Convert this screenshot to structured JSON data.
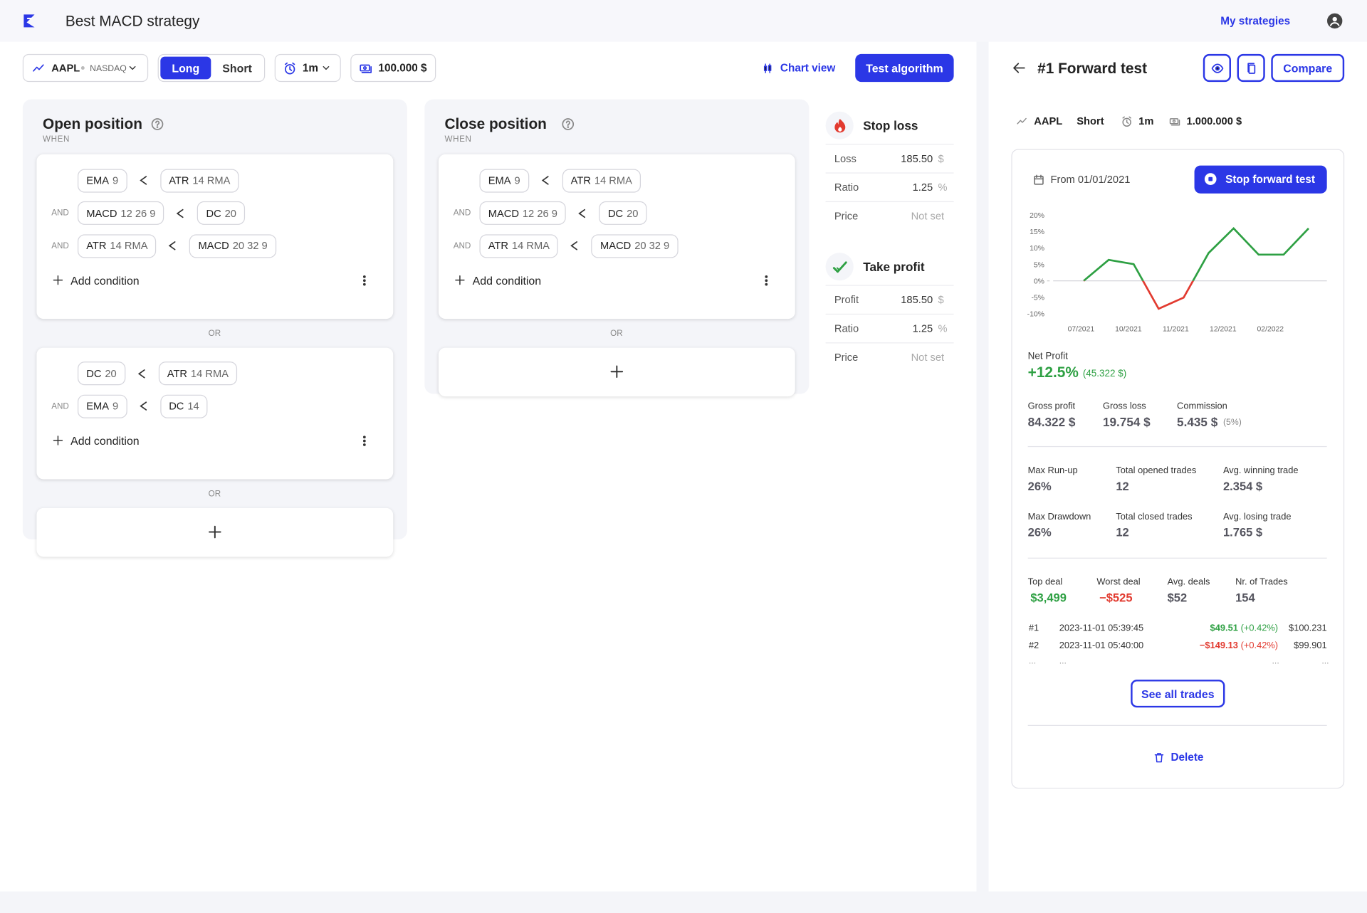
{
  "header": {
    "title": "Best MACD strategy",
    "nav_link": "My strategies"
  },
  "toolbar": {
    "symbol": "AAPL",
    "exchange": "NASDAQ",
    "long": "Long",
    "short": "Short",
    "interval": "1m",
    "capital": "100.000 $",
    "chart_view": "Chart view",
    "test_button": "Test algorithm"
  },
  "labels": {
    "and": "AND",
    "or": "OR",
    "add_condition": "Add condition"
  },
  "open_position": {
    "title": "Open position",
    "subtitle": "WHEN",
    "groups": [
      [
        [
          {
            "name": "EMA",
            "params": "9"
          },
          {
            "name": "ATR",
            "params": "14 RMA"
          }
        ],
        [
          {
            "name": "MACD",
            "params": "12 26 9"
          },
          {
            "name": "DC",
            "params": "20"
          }
        ],
        [
          {
            "name": "ATR",
            "params": "14 RMA"
          },
          {
            "name": "MACD",
            "params": "20 32 9"
          }
        ]
      ],
      [
        [
          {
            "name": "DC",
            "params": "20"
          },
          {
            "name": "ATR",
            "params": "14 RMA"
          }
        ],
        [
          {
            "name": "EMA",
            "params": "9"
          },
          {
            "name": "DC",
            "params": "14"
          }
        ]
      ]
    ]
  },
  "close_position": {
    "title": "Close position",
    "subtitle": "WHEN",
    "groups": [
      [
        [
          {
            "name": "EMA",
            "params": "9"
          },
          {
            "name": "ATR",
            "params": "14 RMA"
          }
        ],
        [
          {
            "name": "MACD",
            "params": "12 26 9"
          },
          {
            "name": "DC",
            "params": "20"
          }
        ],
        [
          {
            "name": "ATR",
            "params": "14 RMA"
          },
          {
            "name": "MACD",
            "params": "20 32 9"
          }
        ]
      ]
    ]
  },
  "stop_loss": {
    "title": "Stop loss",
    "rows": [
      {
        "label": "Loss",
        "value": "185.50",
        "unit": "$"
      },
      {
        "label": "Ratio",
        "value": "1.25",
        "unit": "%"
      },
      {
        "label": "Price",
        "value": "Not set"
      }
    ]
  },
  "take_profit": {
    "title": "Take profit",
    "rows": [
      {
        "label": "Profit",
        "value": "185.50",
        "unit": "$"
      },
      {
        "label": "Ratio",
        "value": "1.25",
        "unit": "%"
      },
      {
        "label": "Price",
        "value": "Not set"
      }
    ]
  },
  "forward_test": {
    "title": "#1 Forward test",
    "compare": "Compare",
    "symbol": "AAPL",
    "side": "Short",
    "interval": "1m",
    "capital": "1.000.000 $",
    "from": "From 01/01/2021",
    "stop_button": "Stop forward test",
    "chart": {
      "type": "line",
      "values": [
        0,
        6.4,
        5.1,
        -8.5,
        -5.1,
        8.5,
        16,
        8,
        8,
        16
      ],
      "ylim": [
        -10,
        20
      ],
      "yticks": [
        {
          "value": 20,
          "label": "20%"
        },
        {
          "value": 15,
          "label": "15%"
        },
        {
          "value": 10,
          "label": "10%"
        },
        {
          "value": 5,
          "label": "5%"
        },
        {
          "value": 0,
          "label": "0%"
        },
        {
          "value": -5,
          "label": "-5%"
        },
        {
          "value": -10,
          "label": "-10%"
        }
      ],
      "xtick_labels": [
        "07/2021",
        "10/2021",
        "11/2021",
        "12/2021",
        "02/2022"
      ],
      "up_color": "#2ea043",
      "down_color": "#e23b30"
    },
    "net_profit": {
      "label": "Net Profit",
      "value": "+12.5%",
      "amount": "(45.322 $)"
    },
    "gross": [
      {
        "label": "Gross profit",
        "value": "84.322 $"
      },
      {
        "label": "Gross loss",
        "value": "19.754 $"
      },
      {
        "label": "Commission",
        "value": "5.435 $",
        "note": "(5%)"
      }
    ],
    "stats": [
      [
        {
          "label": "Max Run-up",
          "value": "26%"
        },
        {
          "label": "Total opened trades",
          "value": "12"
        },
        {
          "label": "Avg. winning trade",
          "value": "2.354 $"
        }
      ],
      [
        {
          "label": "Max Drawdown",
          "value": "26%"
        },
        {
          "label": "Total closed trades",
          "value": "12"
        },
        {
          "label": "Avg. losing trade",
          "value": "1.765 $"
        }
      ]
    ],
    "deals": [
      {
        "label": "Top deal",
        "value": "$3,499",
        "tone": "up"
      },
      {
        "label": "Worst deal",
        "value": "−$525",
        "tone": "down"
      },
      {
        "label": "Avg. deals",
        "value": "$52"
      },
      {
        "label": "Nr. of Trades",
        "value": "154"
      }
    ],
    "trades": [
      {
        "id": "#1",
        "time": "2023-11-01 05:39:45",
        "pnl": "$49.51",
        "pct": "(+0.42%)",
        "balance": "$100.231",
        "tone": "up"
      },
      {
        "id": "#2",
        "time": "2023-11-01 05:40:00",
        "pnl": "−$149.13",
        "pct": "(+0.42%)",
        "balance": "$99.901",
        "tone": "down"
      }
    ],
    "ellipsis": "...",
    "see_all": "See all trades",
    "delete": "Delete"
  }
}
